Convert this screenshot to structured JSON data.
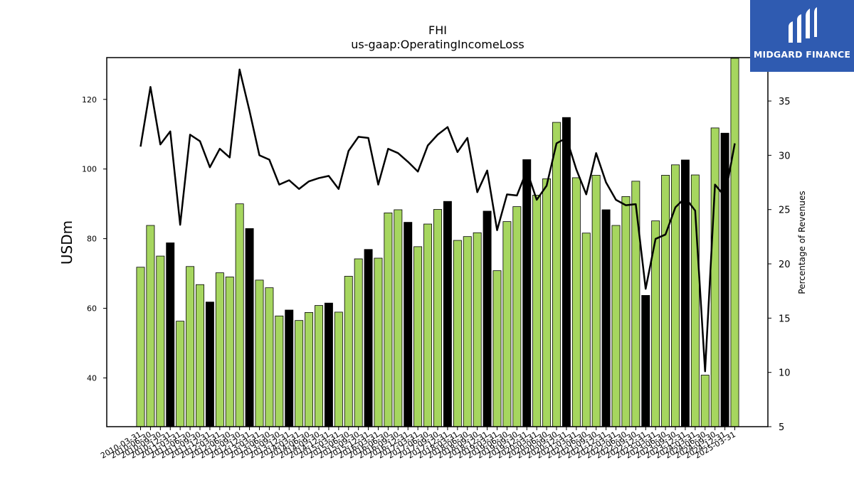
{
  "brand": {
    "name": "MIDGARD FINANCE",
    "icon": "midgard-logo-icon",
    "background": "#2f5bb1"
  },
  "chart_data": {
    "type": "bar",
    "title": "FHI",
    "subtitle": "us-gaap:OperatingIncomeLoss",
    "ylabel": "USDm",
    "y2label": "Percentage of Revenues",
    "ylim": [
      26,
      132
    ],
    "y2lim": [
      5,
      39
    ],
    "yticks": [
      40,
      60,
      80,
      100,
      120
    ],
    "y2ticks": [
      5,
      10,
      15,
      20,
      25,
      30,
      35
    ],
    "colors": {
      "quarter_bar": "#a6d65f",
      "year_end_bar": "#000000",
      "line": "#000000"
    },
    "x_tick_labels": [
      "2010-03-31",
      "2010-06-30",
      "2010-09-30",
      "2010-12-31",
      "2011-03-31",
      "2011-06-30",
      "2011-09-30",
      "2011-12-31",
      "2012-03-31",
      "2012-06-30",
      "2012-09-30",
      "2012-12-31",
      "2013-03-31",
      "2013-06-30",
      "2013-09-30",
      "2013-12-31",
      "2014-03-31",
      "2014-06-30",
      "2014-09-30",
      "2014-12-31",
      "2015-03-31",
      "2015-06-30",
      "2015-09-30",
      "2015-12-31",
      "2016-03-31",
      "2016-06-30",
      "2016-09-30",
      "2016-12-31",
      "2017-03-31",
      "2017-06-30",
      "2017-09-30",
      "2017-12-31",
      "2018-03-31",
      "2018-06-30",
      "2018-09-30",
      "2018-12-31",
      "2019-03-31",
      "2019-06-30",
      "2019-09-30",
      "2019-12-31",
      "2020-03-31",
      "2020-06-30",
      "2020-09-30",
      "2020-12-31",
      "2021-03-31",
      "2021-06-30",
      "2021-09-30",
      "2021-12-31",
      "2022-03-31",
      "2022-06-30",
      "2022-09-30",
      "2022-12-31",
      "2023-03-31",
      "2023-06-30",
      "2023-09-30",
      "2023-12-31",
      "2024-03-31",
      "2024-06-30",
      "2024-09-30",
      "2024-12-31",
      "2025-03-31"
    ],
    "series": [
      {
        "type": "bar",
        "values": [
          71.8,
          83.8,
          75.0,
          78.8,
          56.3,
          72.0,
          66.8,
          61.8,
          70.2,
          69.0,
          90.0,
          82.9,
          68.1,
          65.9,
          57.8,
          59.5,
          56.5,
          58.8,
          60.8,
          61.5,
          58.9,
          69.2,
          74.2,
          76.9,
          74.4,
          87.4,
          88.3,
          84.7,
          77.7,
          84.2,
          88.4,
          90.7,
          79.5,
          80.6,
          81.7,
          87.9,
          70.8,
          84.9,
          89.2,
          102.7,
          92.5,
          97.2,
          113.4,
          114.8,
          97.5,
          81.6,
          98.2,
          88.3,
          83.8,
          92.1,
          96.5,
          63.7,
          85.1,
          98.2,
          101.2,
          102.6,
          98.3,
          40.8,
          111.8,
          110.3,
          131.8
        ],
        "is_year_end": [
          false,
          false,
          false,
          true,
          false,
          false,
          false,
          true,
          false,
          false,
          false,
          true,
          false,
          false,
          false,
          true,
          false,
          false,
          false,
          true,
          false,
          false,
          false,
          true,
          false,
          false,
          false,
          true,
          false,
          false,
          false,
          true,
          false,
          false,
          false,
          true,
          false,
          false,
          false,
          true,
          false,
          false,
          false,
          true,
          false,
          false,
          false,
          true,
          false,
          false,
          false,
          true,
          false,
          false,
          false,
          true,
          false,
          false,
          false,
          true,
          false
        ]
      },
      {
        "type": "line",
        "axis": "right",
        "values": [
          30.8,
          36.3,
          31.0,
          32.2,
          23.6,
          31.9,
          31.3,
          28.9,
          30.6,
          29.8,
          37.9,
          34.1,
          30.0,
          29.6,
          27.3,
          27.7,
          26.9,
          27.6,
          27.9,
          28.1,
          26.9,
          30.4,
          31.7,
          31.6,
          27.3,
          30.6,
          30.2,
          29.4,
          28.5,
          30.9,
          31.9,
          32.6,
          30.3,
          31.6,
          26.6,
          28.6,
          23.1,
          26.4,
          26.3,
          28.6,
          25.9,
          27.2,
          31.1,
          31.6,
          28.7,
          26.4,
          30.2,
          27.5,
          25.9,
          25.4,
          25.5,
          17.7,
          22.3,
          22.7,
          25.2,
          26.1,
          24.9,
          10.1,
          27.3,
          26.2,
          31.1
        ]
      }
    ]
  }
}
